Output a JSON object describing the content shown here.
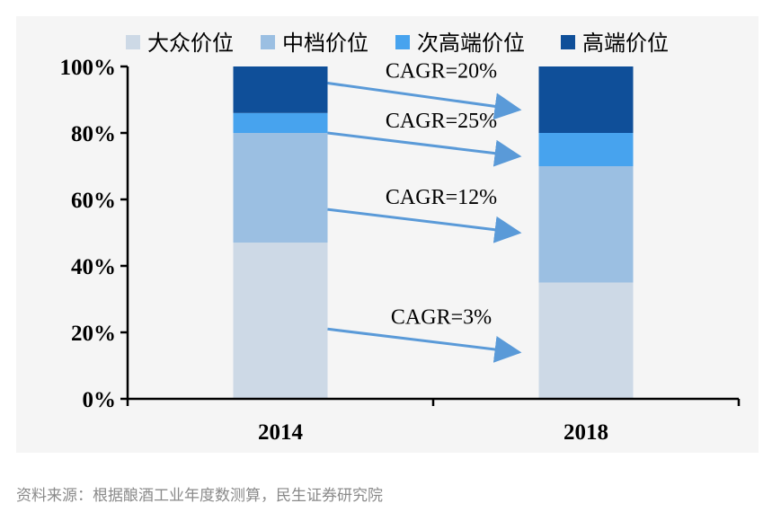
{
  "source_note": "资料来源：根据酿酒工业年度数测算，民生证券研究院",
  "chart_data": {
    "type": "bar",
    "stacked": true,
    "categories": [
      "2014",
      "2018"
    ],
    "series": [
      {
        "name": "大众价位",
        "color": "#cdd9e6",
        "values": [
          47,
          35
        ]
      },
      {
        "name": "中档价位",
        "color": "#9bbfe2",
        "values": [
          33,
          35
        ]
      },
      {
        "name": "次高端价位",
        "color": "#47a3ee",
        "values": [
          6,
          10
        ]
      },
      {
        "name": "高端价位",
        "color": "#0f4f99",
        "values": [
          14,
          20
        ]
      }
    ],
    "ylim": [
      0,
      100
    ],
    "yticks": [
      "0%",
      "20%",
      "40%",
      "60%",
      "80%",
      "100%"
    ],
    "legend_position": "top",
    "annotations": [
      {
        "text": "CAGR=20%",
        "from_value": 95,
        "to_value": 87
      },
      {
        "text": "CAGR=25%",
        "from_value": 80,
        "to_value": 73
      },
      {
        "text": "CAGR=12%",
        "from_value": 57,
        "to_value": 50
      },
      {
        "text": "CAGR=3%",
        "from_value": 21,
        "to_value": 14
      }
    ],
    "arrow_color": "#5a9ad8"
  }
}
